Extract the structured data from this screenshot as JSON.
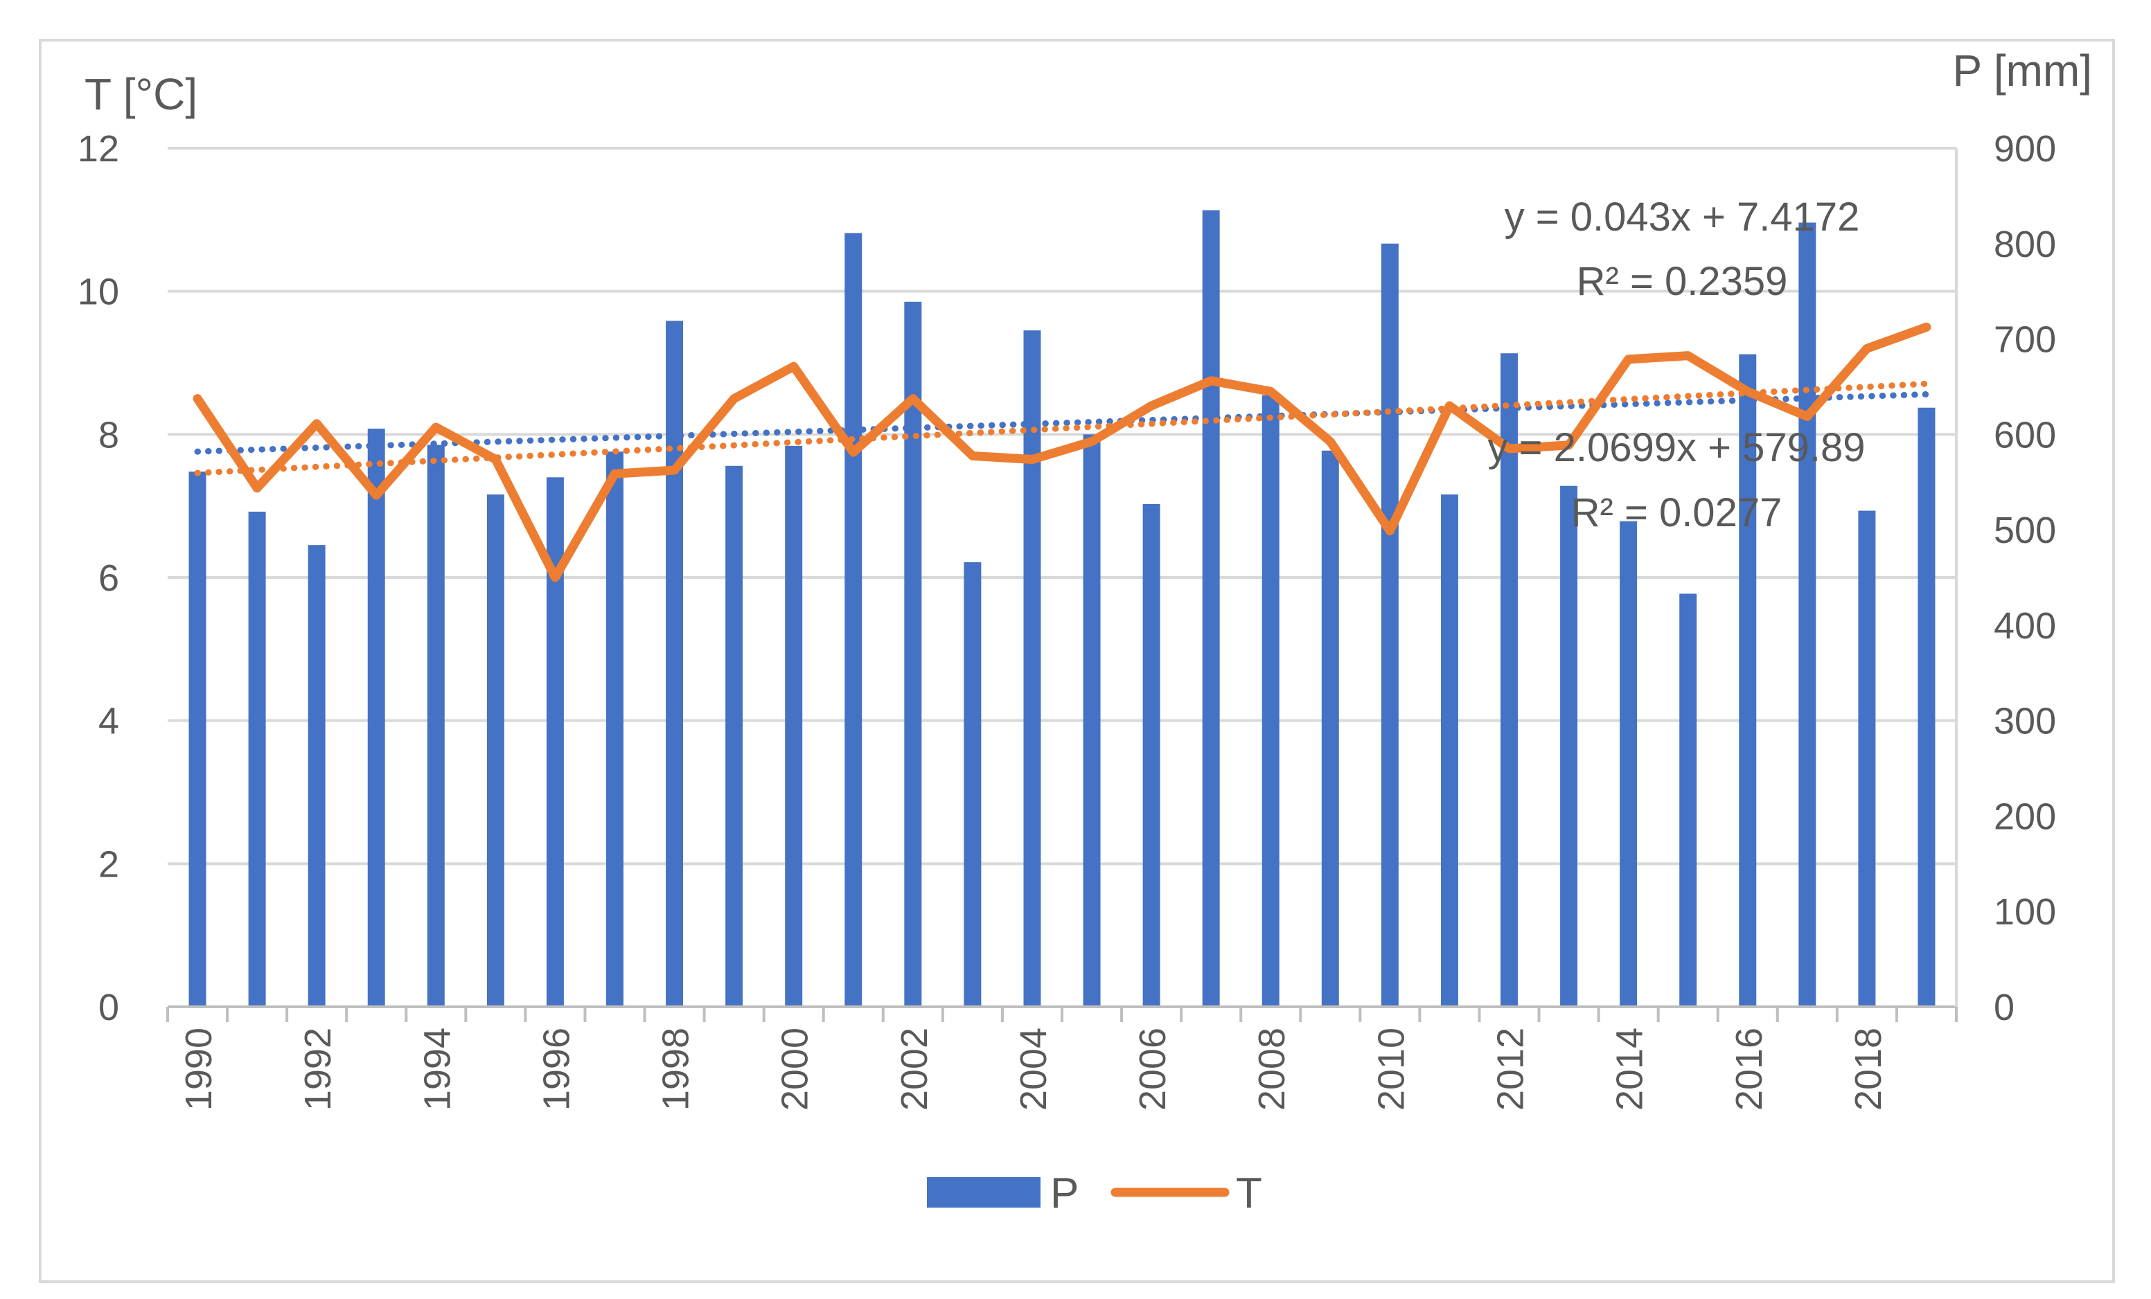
{
  "chart_data": {
    "type": "bar+line",
    "categories": [
      "1990",
      "1991",
      "1992",
      "1993",
      "1994",
      "1995",
      "1996",
      "1997",
      "1998",
      "1999",
      "2000",
      "2001",
      "2002",
      "2003",
      "2004",
      "2005",
      "2006",
      "2007",
      "2008",
      "2009",
      "2010",
      "2011",
      "2012",
      "2013",
      "2014",
      "2015",
      "2016",
      "2017",
      "2018",
      "2019"
    ],
    "x_tick_labels": [
      "1990",
      "1992",
      "1994",
      "1996",
      "1998",
      "2000",
      "2002",
      "2004",
      "2006",
      "2008",
      "2010",
      "2012",
      "2014",
      "2016",
      "2018"
    ],
    "series": [
      {
        "name": "P",
        "type": "bar",
        "axis": "right",
        "color": "#4472C4",
        "values": [
          561,
          519,
          484,
          606,
          589,
          537,
          555,
          582,
          719,
          567,
          588,
          811,
          739,
          466,
          709,
          600,
          527,
          835,
          641,
          583,
          800,
          537,
          685,
          546,
          509,
          433,
          684,
          822,
          520,
          628
        ]
      },
      {
        "name": "T",
        "type": "line",
        "axis": "left",
        "color": "#ED7D31",
        "values": [
          8.5,
          7.25,
          8.15,
          7.15,
          8.1,
          7.65,
          6.0,
          7.45,
          7.5,
          8.5,
          8.95,
          7.75,
          8.5,
          7.7,
          7.65,
          7.9,
          8.4,
          8.75,
          8.6,
          7.9,
          6.65,
          8.4,
          7.8,
          7.85,
          9.05,
          9.1,
          8.6,
          8.25,
          9.2,
          9.5
        ]
      }
    ],
    "trendlines": [
      {
        "series": "P",
        "color": "#4472C4",
        "slope": 2.0699,
        "intercept": 579.89,
        "equation": "y = 2.0699x + 579.89",
        "r2": "R² = 0.0277"
      },
      {
        "series": "T",
        "color": "#ED7D31",
        "slope": 0.043,
        "intercept": 7.4172,
        "equation": "y = 0.043x + 7.4172",
        "r2": "R² = 0.2359"
      }
    ],
    "left_axis": {
      "label": "T [°C]",
      "min": 0,
      "max": 12,
      "step": 2,
      "ticks": [
        "0",
        "2",
        "4",
        "6",
        "8",
        "10",
        "12"
      ]
    },
    "right_axis": {
      "label": "P [mm]",
      "min": 0,
      "max": 900,
      "step": 100,
      "ticks": [
        "0",
        "100",
        "200",
        "300",
        "400",
        "500",
        "600",
        "700",
        "800",
        "900"
      ]
    },
    "grid": true,
    "legend": {
      "position": "bottom",
      "entries": [
        "P",
        "T"
      ]
    }
  }
}
